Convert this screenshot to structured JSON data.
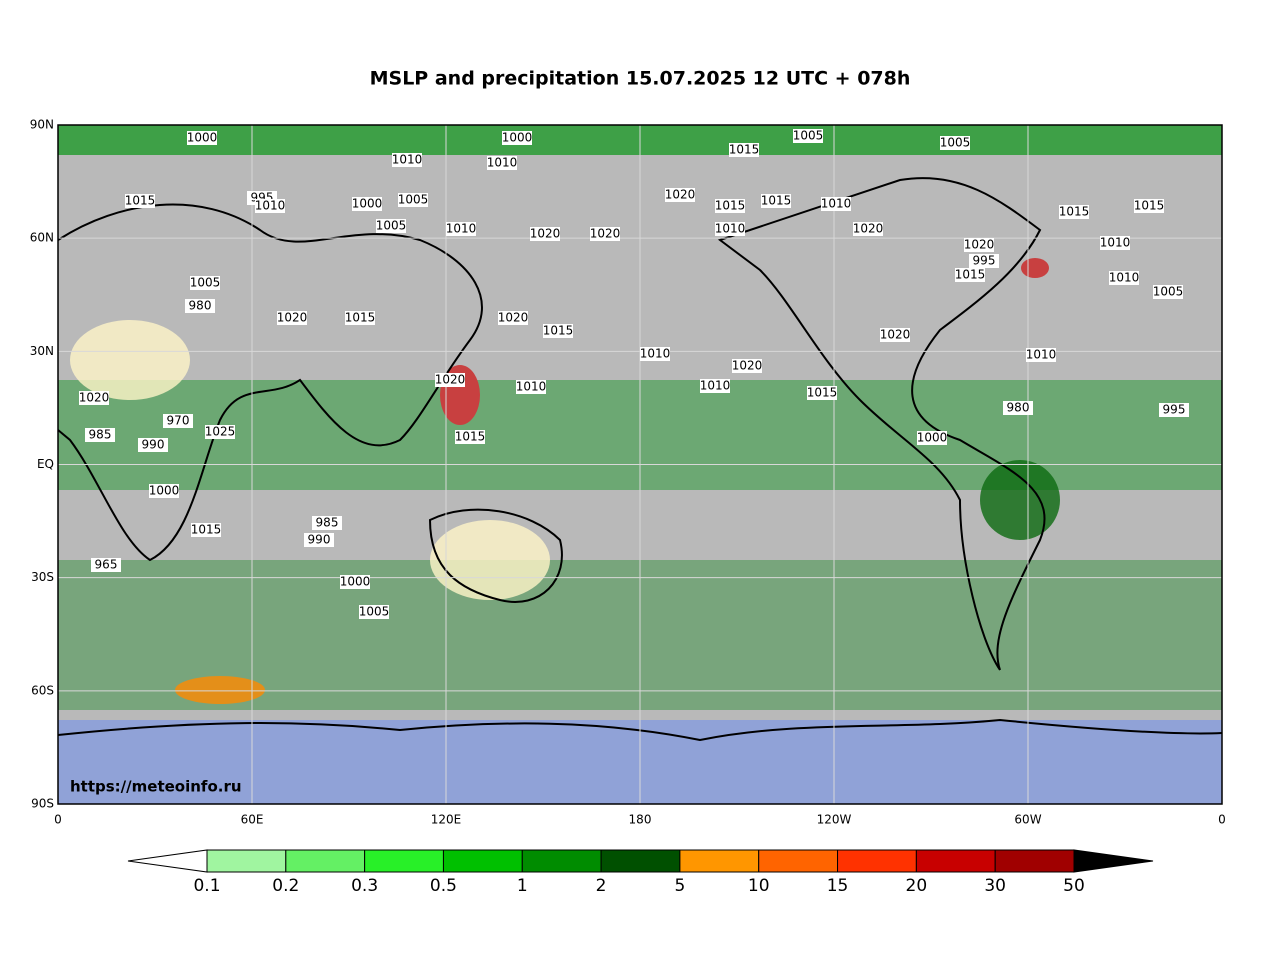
{
  "map": {
    "title": "MSLP and precipitation 15.07.2025 12 UTC + 078h",
    "watermark": "https://meteoinfo.ru",
    "grid": true,
    "lat_ticks": [
      {
        "value": 90,
        "label": "90N"
      },
      {
        "value": 60,
        "label": "60N"
      },
      {
        "value": 30,
        "label": "30N"
      },
      {
        "value": 0,
        "label": "EQ"
      },
      {
        "value": -30,
        "label": "30S"
      },
      {
        "value": -60,
        "label": "60S"
      },
      {
        "value": -90,
        "label": "90S"
      }
    ],
    "lon_ticks": [
      {
        "value": 0,
        "label": "0"
      },
      {
        "value": 60,
        "label": "60E"
      },
      {
        "value": 120,
        "label": "120E"
      },
      {
        "value": 180,
        "label": "180"
      },
      {
        "value": 240,
        "label": "120W"
      },
      {
        "value": 300,
        "label": "60W"
      },
      {
        "value": 360,
        "label": "0"
      }
    ],
    "colorbar": {
      "levels": [
        "0.1",
        "0.2",
        "0.3",
        "0.5",
        "1",
        "2",
        "5",
        "10",
        "15",
        "20",
        "30",
        "50"
      ],
      "colors": [
        "#a0f5a0",
        "#64f064",
        "#28f028",
        "#00c000",
        "#008c00",
        "#005000",
        "#ff9600",
        "#ff6400",
        "#ff3200",
        "#c80000",
        "#a00000"
      ],
      "under_color": "#ffffff",
      "over_color": "#000000"
    },
    "isobar_labels": [
      "1000",
      "1000",
      "1005",
      "1010",
      "1015",
      "1005",
      "1010",
      "1015",
      "1020",
      "1015",
      "995",
      "1000",
      "1005",
      "1010",
      "1015",
      "1010",
      "1005",
      "1010",
      "1020",
      "1020",
      "1010",
      "1020",
      "1015",
      "1015",
      "1020",
      "1010",
      "995",
      "1010",
      "1005",
      "1015",
      "1020",
      "1010",
      "1015",
      "1020",
      "1015",
      "1010",
      "1020",
      "1010",
      "1015",
      "1020",
      "1000",
      "1010",
      "995",
      "980",
      "1005",
      "980",
      "1020",
      "1015",
      "970",
      "1025",
      "1020",
      "985",
      "990",
      "1000",
      "1015",
      "965",
      "985",
      "990",
      "1000",
      "1005"
    ]
  }
}
